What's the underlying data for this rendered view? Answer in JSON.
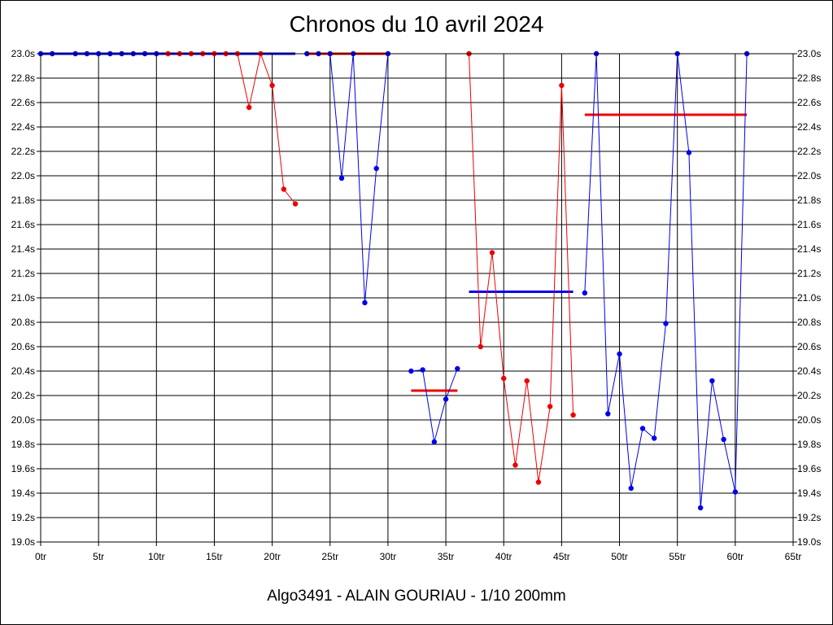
{
  "chart_data": {
    "type": "line",
    "title": "Chronos du 10 avril 2024",
    "caption": "Algo3491 - ALAIN GOURIAU - 1/10 200mm",
    "xlim": [
      0,
      65
    ],
    "ylim": [
      19.0,
      23.0
    ],
    "x_ticks": [
      0,
      5,
      10,
      15,
      20,
      25,
      30,
      35,
      40,
      45,
      50,
      55,
      60,
      65
    ],
    "x_tick_labels": [
      "0tr",
      "5tr",
      "10tr",
      "15tr",
      "20tr",
      "25tr",
      "30tr",
      "35tr",
      "40tr",
      "45tr",
      "50tr",
      "55tr",
      "60tr",
      "65tr"
    ],
    "y_ticks": [
      19.0,
      19.2,
      19.4,
      19.6,
      19.8,
      20.0,
      20.2,
      20.4,
      20.6,
      20.8,
      21.0,
      21.2,
      21.4,
      21.6,
      21.8,
      22.0,
      22.2,
      22.4,
      22.6,
      22.8,
      23.0
    ],
    "y_tick_labels": [
      "19.0s",
      "19.2s",
      "19.4s",
      "19.6s",
      "19.8s",
      "20.0s",
      "20.2s",
      "20.4s",
      "20.6s",
      "20.8s",
      "21.0s",
      "21.2s",
      "21.4s",
      "21.6s",
      "21.8s",
      "22.0s",
      "22.2s",
      "22.4s",
      "22.6s",
      "22.8s",
      "23.0s"
    ],
    "grid": true,
    "colors": {
      "blue": "#0000ee",
      "red": "#ee0000"
    },
    "series": [
      {
        "color": "blue",
        "points": [
          [
            0,
            23.0
          ],
          [
            1,
            23.0
          ]
        ]
      },
      {
        "color": "blue",
        "points": [
          [
            3,
            23.0
          ],
          [
            4,
            23.0
          ],
          [
            5,
            23.0
          ],
          [
            6,
            23.0
          ],
          [
            7,
            23.0
          ],
          [
            8,
            23.0
          ],
          [
            9,
            23.0
          ],
          [
            10,
            23.0
          ]
        ]
      },
      {
        "color": "red",
        "points": [
          [
            11,
            23.0
          ],
          [
            12,
            23.0
          ],
          [
            13,
            23.0
          ],
          [
            14,
            23.0
          ],
          [
            15,
            23.0
          ],
          [
            16,
            23.0
          ],
          [
            17,
            23.0
          ],
          [
            18,
            22.56
          ],
          [
            19,
            23.0
          ],
          [
            20,
            22.74
          ],
          [
            21,
            21.89
          ],
          [
            22,
            21.77
          ]
        ]
      },
      {
        "color": "blue",
        "points": [
          [
            23,
            23.0
          ],
          [
            24,
            23.0
          ],
          [
            25,
            23.0
          ],
          [
            26,
            21.98
          ],
          [
            27,
            23.0
          ],
          [
            28,
            20.96
          ],
          [
            29,
            22.06
          ],
          [
            30,
            23.0
          ]
        ]
      },
      {
        "color": "blue",
        "points": [
          [
            32,
            20.4
          ],
          [
            33,
            20.41
          ],
          [
            34,
            19.82
          ],
          [
            35,
            20.17
          ],
          [
            36,
            20.42
          ]
        ]
      },
      {
        "color": "red",
        "points": [
          [
            37,
            23.0
          ],
          [
            38,
            20.6
          ],
          [
            39,
            21.37
          ],
          [
            40,
            20.34
          ],
          [
            41,
            19.63
          ],
          [
            42,
            20.32
          ],
          [
            43,
            19.49
          ],
          [
            44,
            20.11
          ],
          [
            45,
            22.74
          ],
          [
            46,
            20.04
          ]
        ]
      },
      {
        "color": "blue",
        "points": [
          [
            47,
            21.04
          ],
          [
            48,
            23.0
          ],
          [
            49,
            20.05
          ],
          [
            50,
            20.54
          ],
          [
            51,
            19.44
          ],
          [
            52,
            19.93
          ],
          [
            53,
            19.85
          ],
          [
            54,
            20.79
          ],
          [
            55,
            23.0
          ],
          [
            56,
            22.19
          ],
          [
            57,
            19.28
          ],
          [
            58,
            20.32
          ],
          [
            59,
            19.84
          ],
          [
            60,
            19.41
          ],
          [
            61,
            23.0
          ]
        ]
      }
    ],
    "averages": [
      {
        "color": "blue",
        "x": [
          0,
          22
        ],
        "y": 23.0
      },
      {
        "color": "red",
        "x": [
          23,
          30
        ],
        "y": 23.0
      },
      {
        "color": "red",
        "x": [
          32,
          36
        ],
        "y": 20.24
      },
      {
        "color": "blue",
        "x": [
          37,
          46
        ],
        "y": 21.05
      },
      {
        "color": "red",
        "x": [
          47,
          61
        ],
        "y": 22.5
      }
    ]
  }
}
